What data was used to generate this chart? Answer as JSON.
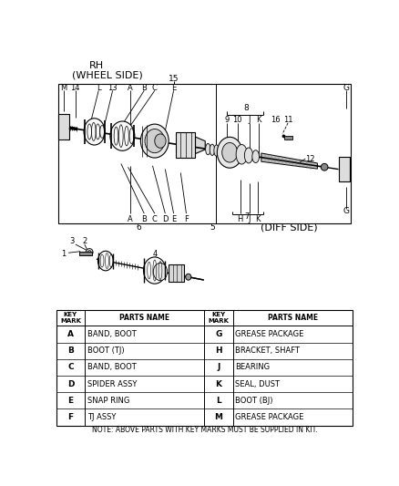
{
  "bg_color": "#ffffff",
  "table": {
    "left_keys": [
      "A",
      "B",
      "C",
      "D",
      "E",
      "F"
    ],
    "left_parts": [
      "BAND, BOOT",
      "BOOT (TJ)",
      "BAND, BOOT",
      "SPIDER ASSY",
      "SNAP RING",
      "TJ ASSY"
    ],
    "right_keys": [
      "G",
      "H",
      "J",
      "K",
      "L",
      "M"
    ],
    "right_parts": [
      "GREASE PACKAGE",
      "BRACKET, SHAFT",
      "BEARING",
      "SEAL, DUST",
      "BOOT (BJ)",
      "GREASE PACKAGE"
    ]
  },
  "note": "NOTE: ABOVE PARTS WITH KEY MARKS MUST BE SUPPLIED IN KIT."
}
